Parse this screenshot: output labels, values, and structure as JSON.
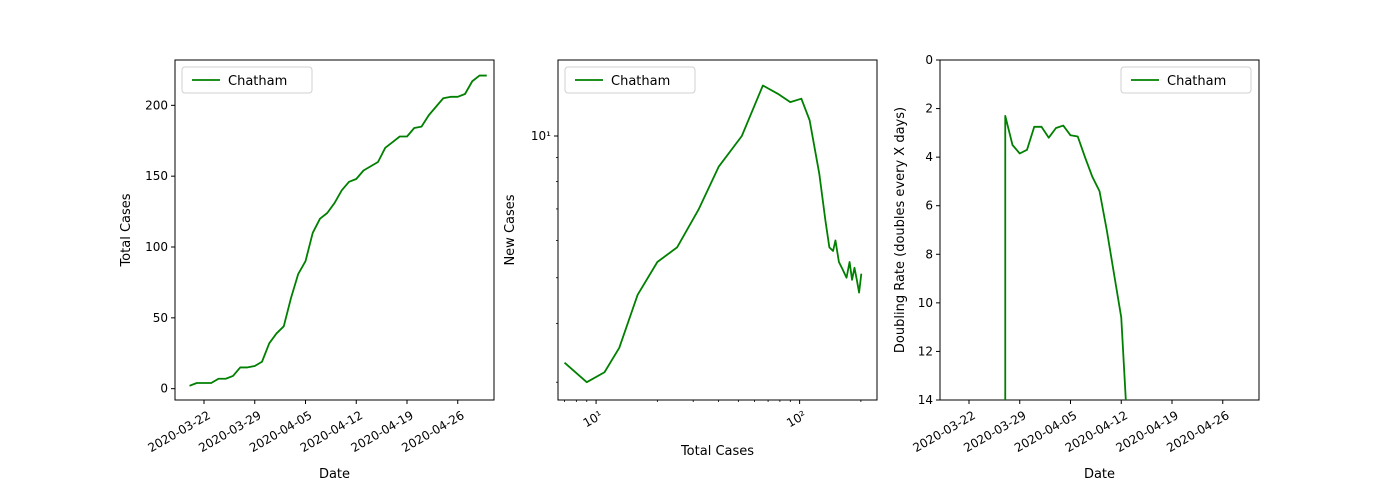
{
  "colors": {
    "series": "#008000",
    "axis": "#000000",
    "background": "#ffffff"
  },
  "chart_data": [
    {
      "type": "line",
      "xlabel": "Date",
      "ylabel": "Total Cases",
      "x_axis": "date",
      "xlim": [
        "2020-03-18",
        "2020-05-01"
      ],
      "ylim": [
        -8,
        232
      ],
      "xticks": [
        "2020-03-22",
        "2020-03-29",
        "2020-04-05",
        "2020-04-12",
        "2020-04-19",
        "2020-04-26"
      ],
      "yticks": [
        0,
        50,
        100,
        150,
        200
      ],
      "legend": "top-left",
      "series": [
        {
          "name": "Chatham",
          "color": "#008000",
          "x": [
            "2020-03-20",
            "2020-03-21",
            "2020-03-22",
            "2020-03-23",
            "2020-03-24",
            "2020-03-25",
            "2020-03-26",
            "2020-03-27",
            "2020-03-28",
            "2020-03-29",
            "2020-03-30",
            "2020-03-31",
            "2020-04-01",
            "2020-04-02",
            "2020-04-03",
            "2020-04-04",
            "2020-04-05",
            "2020-04-06",
            "2020-04-07",
            "2020-04-08",
            "2020-04-09",
            "2020-04-10",
            "2020-04-11",
            "2020-04-12",
            "2020-04-13",
            "2020-04-14",
            "2020-04-15",
            "2020-04-16",
            "2020-04-17",
            "2020-04-18",
            "2020-04-19",
            "2020-04-20",
            "2020-04-21",
            "2020-04-22",
            "2020-04-23",
            "2020-04-24",
            "2020-04-25",
            "2020-04-26",
            "2020-04-27",
            "2020-04-28",
            "2020-04-29",
            "2020-04-30"
          ],
          "y": [
            2,
            4,
            4,
            4,
            7,
            7,
            9,
            15,
            15,
            16,
            19,
            32,
            39,
            44,
            64,
            81,
            90,
            110,
            120,
            124,
            131,
            140,
            146,
            148,
            154,
            157,
            160,
            170,
            174,
            178,
            178,
            184,
            185,
            193,
            199,
            205,
            206,
            206,
            208,
            217,
            221,
            221
          ]
        }
      ]
    },
    {
      "type": "line",
      "xlabel": "Total Cases",
      "ylabel": "New Cases",
      "x_scale": "log",
      "y_scale": "log",
      "xlim": [
        6.5,
        240
      ],
      "ylim": [
        2.75,
        14.5
      ],
      "xticks": [
        10,
        100
      ],
      "xtick_labels": [
        "10¹",
        "10²"
      ],
      "yticks": [
        10
      ],
      "ytick_labels": [
        "10¹"
      ],
      "legend": "top-left",
      "series": [
        {
          "name": "Chatham",
          "color": "#008000",
          "x": [
            7,
            9,
            11,
            13,
            16,
            20,
            25,
            32,
            40,
            52,
            66,
            78,
            90,
            102,
            112,
            125,
            134,
            140,
            146,
            150,
            156,
            163,
            170,
            176,
            181,
            186,
            191,
            196,
            201
          ],
          "y": [
            3.3,
            3.0,
            3.15,
            3.55,
            4.6,
            5.4,
            5.8,
            7.0,
            8.6,
            10.0,
            12.8,
            12.3,
            11.8,
            12.0,
            10.8,
            8.3,
            6.6,
            5.8,
            5.7,
            6.0,
            5.4,
            5.2,
            5.0,
            5.4,
            4.95,
            5.25,
            4.95,
            4.65,
            5.1
          ]
        }
      ]
    },
    {
      "type": "line",
      "xlabel": "Date",
      "ylabel": "Doubling Rate (doubles every X days)",
      "x_axis": "date",
      "xlim": [
        "2020-03-18",
        "2020-05-01"
      ],
      "ylim": [
        14,
        0
      ],
      "y_inverted": true,
      "xticks": [
        "2020-03-22",
        "2020-03-29",
        "2020-04-05",
        "2020-04-12",
        "2020-04-19",
        "2020-04-26"
      ],
      "yticks": [
        0,
        2,
        4,
        6,
        8,
        10,
        12,
        14
      ],
      "legend": "top-right",
      "series": [
        {
          "name": "Chatham",
          "color": "#008000",
          "x": [
            "2020-03-27",
            "2020-03-27",
            "2020-03-28",
            "2020-03-29",
            "2020-03-30",
            "2020-03-31",
            "2020-04-01",
            "2020-04-02",
            "2020-04-03",
            "2020-04-04",
            "2020-04-05",
            "2020-04-06",
            "2020-04-07",
            "2020-04-08",
            "2020-04-09",
            "2020-04-10",
            "2020-04-11",
            "2020-04-12",
            "2020-04-13"
          ],
          "y": [
            16,
            2.3,
            3.5,
            3.85,
            3.7,
            2.75,
            2.75,
            3.2,
            2.8,
            2.7,
            3.1,
            3.15,
            4.0,
            4.8,
            5.4,
            7.0,
            8.8,
            10.6,
            16
          ]
        }
      ]
    }
  ]
}
